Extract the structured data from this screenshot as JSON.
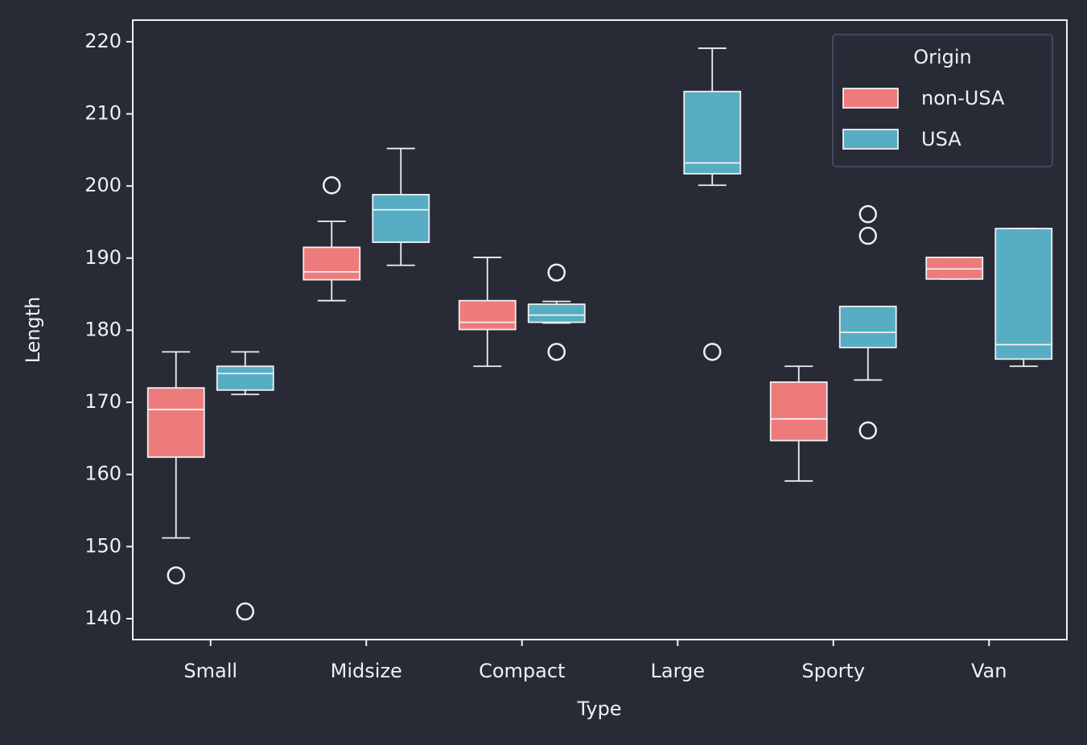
{
  "chart_data": {
    "type": "boxplot",
    "x_label": "Type",
    "y_label": "Length",
    "categories": [
      "Small",
      "Midsize",
      "Compact",
      "Large",
      "Sporty",
      "Van"
    ],
    "ylim": [
      137.1,
      223.0
    ],
    "yticks": [
      140,
      150,
      160,
      170,
      180,
      190,
      200,
      210,
      220
    ],
    "legend_title": "Origin",
    "legend_loc": "upper right",
    "background": "#282a36",
    "series": [
      {
        "name": "non-USA",
        "color": "#ee7b7b",
        "boxes": [
          {
            "whislo": 151.2,
            "q1": 162.4,
            "med": 169.0,
            "q3": 172.0,
            "whishi": 177.0,
            "fliers": [
              146.0
            ]
          },
          {
            "whislo": 184.1,
            "q1": 187.0,
            "med": 188.1,
            "q3": 191.5,
            "whishi": 195.1,
            "fliers": [
              200.1
            ]
          },
          {
            "whislo": 175.0,
            "q1": 180.1,
            "med": 181.1,
            "q3": 184.1,
            "whishi": 190.1
          },
          null,
          {
            "whislo": 159.1,
            "q1": 164.7,
            "med": 167.7,
            "q3": 172.8,
            "whishi": 175.0
          },
          {
            "whislo": 187.1,
            "q1": 187.1,
            "med": 188.5,
            "q3": 190.1,
            "whishi": 190.1
          }
        ]
      },
      {
        "name": "USA",
        "color": "#56adc4",
        "boxes": [
          {
            "whislo": 171.1,
            "q1": 171.7,
            "med": 174.0,
            "q3": 175.0,
            "whishi": 177.0,
            "fliers": [
              141.0
            ]
          },
          {
            "whislo": 189.0,
            "q1": 192.2,
            "med": 196.7,
            "q3": 198.8,
            "whishi": 205.2
          },
          {
            "whislo": 181.0,
            "q1": 181.1,
            "med": 182.1,
            "q3": 183.6,
            "whishi": 184.0,
            "fliers": [
              188.0,
              177.0
            ]
          },
          {
            "whislo": 200.1,
            "q1": 201.7,
            "med": 203.2,
            "q3": 213.1,
            "whishi": 219.1,
            "fliers": [
              177.0
            ]
          },
          {
            "whislo": 173.1,
            "q1": 177.6,
            "med": 179.7,
            "q3": 183.3,
            "whishi": 183.3,
            "fliers": [
              196.1,
              193.1,
              166.1
            ]
          },
          {
            "whislo": 175.0,
            "q1": 176.0,
            "med": 178.0,
            "q3": 194.1,
            "whishi": 194.1
          }
        ]
      }
    ]
  }
}
